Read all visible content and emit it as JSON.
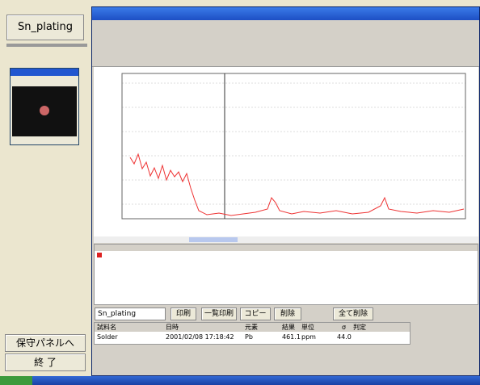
{
  "sidebar": {
    "method_button": "Sn_plating",
    "maintenance_button": "保守パネルへ",
    "exit_button": "終 了"
  },
  "controls": {
    "method_select": "Sn_plating",
    "buttons": [
      "印刷",
      "一覧印刷",
      "コピー",
      "削除"
    ],
    "delete_all": "全て削除"
  },
  "results": {
    "columns": [
      "試料名",
      "日時",
      "元素",
      "結果",
      "単位",
      "σ",
      "判定"
    ],
    "rows": [
      [
        "Solder",
        "2001/02/08 17:18:42",
        "Pb",
        "461.1",
        "ppm",
        "44.0"
      ]
    ]
  }
}
